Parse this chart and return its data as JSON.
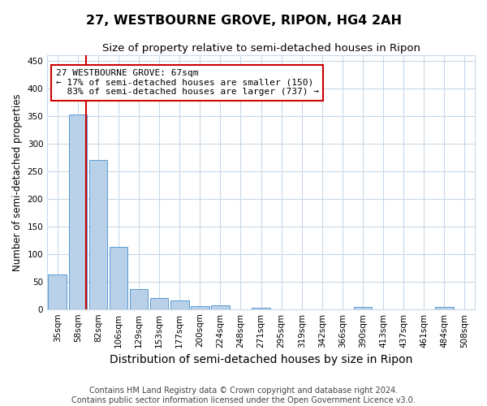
{
  "title": "27, WESTBOURNE GROVE, RIPON, HG4 2AH",
  "subtitle": "Size of property relative to semi-detached houses in Ripon",
  "xlabel": "Distribution of semi-detached houses by size in Ripon",
  "ylabel": "Number of semi-detached properties",
  "footer_line1": "Contains HM Land Registry data © Crown copyright and database right 2024.",
  "footer_line2": "Contains public sector information licensed under the Open Government Licence v3.0.",
  "categories": [
    "35sqm",
    "58sqm",
    "82sqm",
    "106sqm",
    "129sqm",
    "153sqm",
    "177sqm",
    "200sqm",
    "224sqm",
    "248sqm",
    "271sqm",
    "295sqm",
    "319sqm",
    "342sqm",
    "366sqm",
    "390sqm",
    "413sqm",
    "437sqm",
    "461sqm",
    "484sqm",
    "508sqm"
  ],
  "values": [
    63,
    353,
    270,
    113,
    37,
    20,
    15,
    5,
    7,
    0,
    3,
    0,
    0,
    0,
    0,
    4,
    0,
    0,
    0,
    4,
    0
  ],
  "bar_color": "#b8d0e8",
  "bar_edge_color": "#5b9bd5",
  "property_line_x": 1.42,
  "property_label": "27 WESTBOURNE GROVE: 67sqm",
  "smaller_pct": "17%",
  "smaller_count": 150,
  "larger_pct": "83%",
  "larger_count": 737,
  "annotation_box_edge_color": "#cc0000",
  "property_line_color": "#cc0000",
  "grid_color": "#c8d8e8",
  "ylim": [
    0,
    460
  ],
  "yticks": [
    0,
    50,
    100,
    150,
    200,
    250,
    300,
    350,
    400,
    450
  ],
  "bg_color": "#ffffff",
  "title_fontsize": 11.5,
  "subtitle_fontsize": 9.5,
  "xlabel_fontsize": 10,
  "ylabel_fontsize": 8.5,
  "tick_fontsize": 7.5,
  "annotation_fontsize": 8,
  "footer_fontsize": 7
}
